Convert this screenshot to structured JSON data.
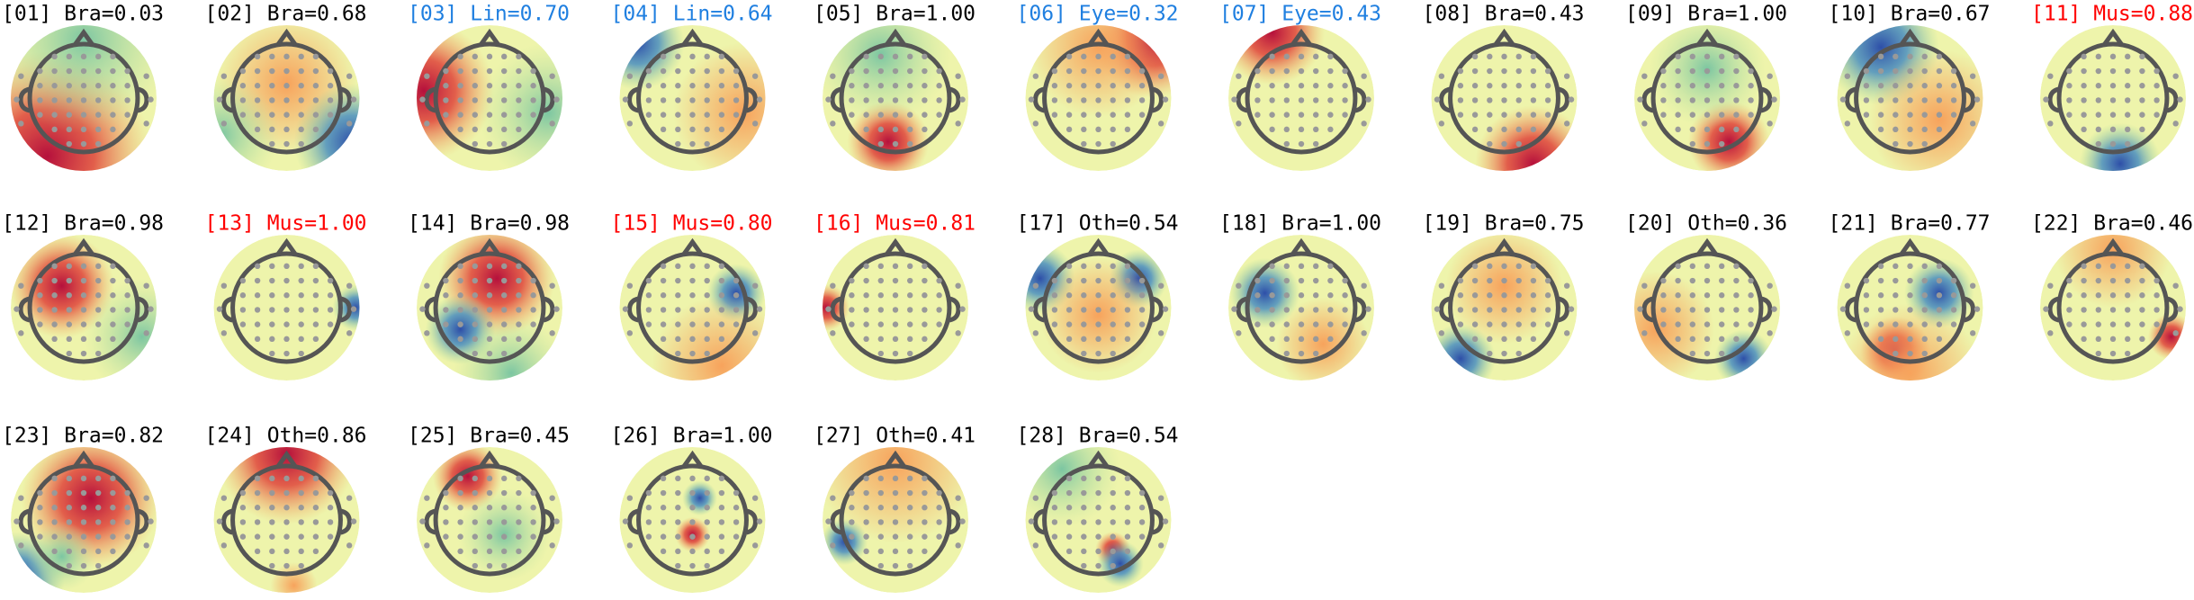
{
  "components": [
    {
      "title": "[01] Bra=0.03",
      "color": "#000000"
    },
    {
      "title": "[02] Bra=0.68",
      "color": "#000000"
    },
    {
      "title": "[03] Lin=0.70",
      "color": "#1f7fe0"
    },
    {
      "title": "[04] Lin=0.64",
      "color": "#1f7fe0"
    },
    {
      "title": "[05] Bra=1.00",
      "color": "#000000"
    },
    {
      "title": "[06] Eye=0.32",
      "color": "#1f7fe0"
    },
    {
      "title": "[07] Eye=0.43",
      "color": "#1f7fe0"
    },
    {
      "title": "[08] Bra=0.43",
      "color": "#000000"
    },
    {
      "title": "[09] Bra=1.00",
      "color": "#000000"
    },
    {
      "title": "[10] Bra=0.67",
      "color": "#000000"
    },
    {
      "title": "[11] Mus=0.88",
      "color": "#ff0000"
    },
    {
      "title": "[12] Bra=0.98",
      "color": "#000000"
    },
    {
      "title": "[13] Mus=1.00",
      "color": "#ff0000"
    },
    {
      "title": "[14] Bra=0.98",
      "color": "#000000"
    },
    {
      "title": "[15] Mus=0.80",
      "color": "#ff0000"
    },
    {
      "title": "[16] Mus=0.81",
      "color": "#ff0000"
    },
    {
      "title": "[17] Oth=0.54",
      "color": "#000000"
    },
    {
      "title": "[18] Bra=1.00",
      "color": "#000000"
    },
    {
      "title": "[19] Bra=0.75",
      "color": "#000000"
    },
    {
      "title": "[20] Oth=0.36",
      "color": "#000000"
    },
    {
      "title": "[21] Bra=0.77",
      "color": "#000000"
    },
    {
      "title": "[22] Bra=0.46",
      "color": "#000000"
    },
    {
      "title": "[23] Bra=0.82",
      "color": "#000000"
    },
    {
      "title": "[24] Oth=0.86",
      "color": "#000000"
    },
    {
      "title": "[25] Bra=0.45",
      "color": "#000000"
    },
    {
      "title": "[26] Bra=1.00",
      "color": "#000000"
    },
    {
      "title": "[27] Oth=0.41",
      "color": "#000000"
    },
    {
      "title": "[28] Bra=0.54",
      "color": "#000000"
    }
  ]
}
